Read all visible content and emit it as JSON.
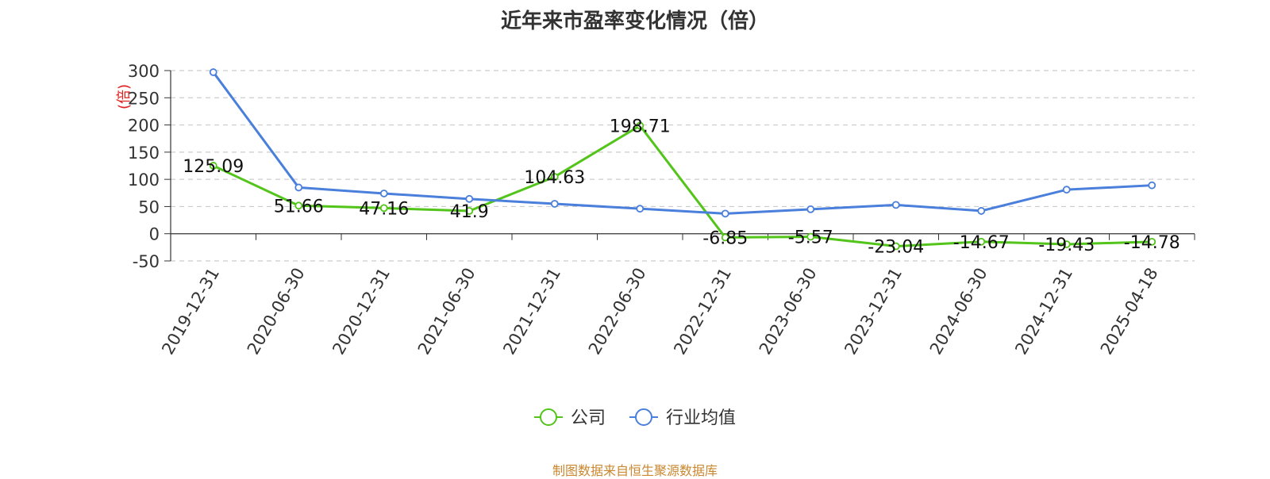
{
  "chart_data": {
    "type": "line",
    "title": "近年来市盈率变化情况（倍）",
    "ylabel": "(倍)",
    "xlabel": "",
    "ylim": [
      -50,
      300
    ],
    "yticks": [
      -50,
      0,
      50,
      100,
      150,
      200,
      250,
      300
    ],
    "grid": true,
    "legend_position": "bottom-center",
    "categories": [
      "2019-12-31",
      "2020-06-30",
      "2020-12-31",
      "2021-06-30",
      "2021-12-31",
      "2022-06-30",
      "2022-12-31",
      "2023-06-30",
      "2023-12-31",
      "2024-06-30",
      "2024-12-31",
      "2025-04-18"
    ],
    "series": [
      {
        "name": "公司",
        "color": "#52c41a",
        "show_labels": true,
        "values": [
          125.09,
          51.66,
          47.16,
          41.9,
          104.63,
          198.71,
          -6.85,
          -5.57,
          -23.04,
          -14.67,
          -19.43,
          -14.78
        ]
      },
      {
        "name": "行业均值",
        "color": "#4a7fdb",
        "show_labels": false,
        "values": [
          297,
          85,
          74,
          64,
          55,
          46,
          37,
          45,
          53,
          42,
          81,
          89
        ]
      }
    ]
  },
  "source_note": "制图数据来自恒生聚源数据库"
}
